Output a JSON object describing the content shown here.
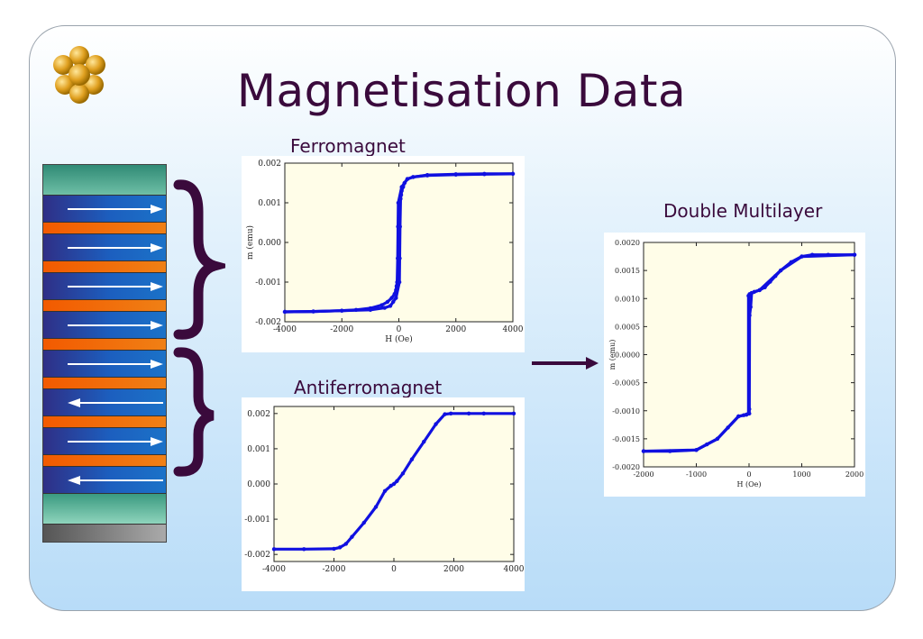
{
  "title": "Magnetisation Data",
  "captions": {
    "ferro": "Ferromagnet",
    "antiferro": "Antiferromagnet",
    "double": "Double Multilayer"
  },
  "colors": {
    "title": "#3a0a3c",
    "plot_bg": "#fffde8",
    "data": "#1010e0",
    "brace": "#3a0a3c"
  },
  "stack": {
    "layers": [
      "cap",
      "magnetic",
      "spacer",
      "magnetic",
      "spacer",
      "magnetic",
      "spacer",
      "magnetic",
      "spacer",
      "magnetic",
      "spacer",
      "magnetic",
      "spacer",
      "magnetic",
      "spacer",
      "magnetic",
      "cap",
      "substrate"
    ],
    "arrows": [
      "right",
      "right",
      "right",
      "right",
      "right",
      "left",
      "right",
      "left"
    ]
  },
  "chart_data": [
    {
      "type": "line",
      "name": "ferromagnet",
      "title": "",
      "xlabel": "H (Oe)",
      "ylabel": "m (emu)",
      "xlim": [
        -4000,
        4000
      ],
      "ylim": [
        -0.002,
        0.002
      ],
      "xticks": [
        -4000,
        -2000,
        0,
        2000,
        4000
      ],
      "yticks": [
        -0.002,
        -0.001,
        0.0,
        0.001,
        0.002
      ],
      "xtick_labels": [
        "-4000",
        "-2000",
        "0",
        "2000",
        "4000"
      ],
      "ytick_labels": [
        "-0.002",
        "-0.001",
        "0.000",
        "0.001",
        "0.002"
      ],
      "series": [
        {
          "x": [
            -4000,
            -3000,
            -2000,
            -1500,
            -1000,
            -600,
            -400,
            -250,
            -150,
            -100,
            -80,
            -60,
            -40,
            -30,
            -20,
            100,
            200,
            300,
            500,
            1000,
            2000,
            3000,
            4000
          ],
          "y": [
            -0.00175,
            -0.00174,
            -0.00172,
            -0.0017,
            -0.00166,
            -0.00158,
            -0.0015,
            -0.0014,
            -0.0013,
            -0.0012,
            -0.0011,
            -0.001,
            -0.0004,
            0.0004,
            0.001,
            0.0014,
            0.0015,
            0.0016,
            0.00165,
            0.0017,
            0.00172,
            0.00173,
            0.00173
          ]
        },
        {
          "x": [
            4000,
            3000,
            2000,
            1000,
            500,
            300,
            200,
            150,
            100,
            80,
            60,
            40,
            30,
            20,
            -100,
            -200,
            -300,
            -500,
            -1000,
            -2000,
            -3000,
            -4000
          ],
          "y": [
            0.00173,
            0.00172,
            0.00171,
            0.00169,
            0.00165,
            0.0016,
            0.0015,
            0.0014,
            0.0013,
            0.0012,
            0.0011,
            0.0004,
            -0.0004,
            -0.001,
            -0.0014,
            -0.0015,
            -0.0016,
            -0.00165,
            -0.0017,
            -0.00172,
            -0.00174,
            -0.00175
          ]
        }
      ]
    },
    {
      "type": "line",
      "name": "antiferromagnet",
      "title": "",
      "xlabel": "",
      "ylabel": "",
      "xlim": [
        -4000,
        4000
      ],
      "ylim": [
        -0.0022,
        0.0022
      ],
      "xticks": [
        -4000,
        -2000,
        0,
        2000,
        4000
      ],
      "yticks": [
        -0.002,
        -0.001,
        0.0,
        0.001,
        0.002
      ],
      "xtick_labels": [
        "-4000",
        "-2000",
        "0",
        "2000",
        "4000"
      ],
      "ytick_labels": [
        "-0.002",
        "-0.001",
        "0.000",
        "0.001",
        "0.002"
      ],
      "series": [
        {
          "x": [
            -4000,
            -3000,
            -2000,
            -1800,
            -1600,
            -1400,
            -1000,
            -600,
            -300,
            -100,
            0,
            100,
            300,
            600,
            1000,
            1400,
            1700,
            1900,
            2500,
            3000,
            4000
          ],
          "y": [
            -0.00185,
            -0.00185,
            -0.00184,
            -0.0018,
            -0.0017,
            -0.0015,
            -0.0011,
            -0.00065,
            -0.0002,
            -5e-05,
            0.0,
            8e-05,
            0.0003,
            0.0007,
            0.0012,
            0.0017,
            0.00198,
            0.002,
            0.002,
            0.002,
            0.002
          ]
        }
      ]
    },
    {
      "type": "line",
      "name": "double-multilayer",
      "title": "",
      "xlabel": "H (Oe)",
      "ylabel": "m (emu)",
      "xlim": [
        -2000,
        2000
      ],
      "ylim": [
        -0.002,
        0.002
      ],
      "xticks": [
        -2000,
        -1000,
        0,
        1000,
        2000
      ],
      "yticks": [
        -0.002,
        -0.0015,
        -0.001,
        -0.0005,
        0.0,
        0.0005,
        0.001,
        0.0015,
        0.002
      ],
      "xtick_labels": [
        "-2000",
        "-1000",
        "0",
        "1000",
        "2000"
      ],
      "ytick_labels": [
        "-0.0020",
        "-0.0015",
        "-0.0010",
        "-0.0005",
        "0.0000",
        "0.0005",
        "0.0010",
        "0.0015",
        "0.0020"
      ],
      "series": [
        {
          "x": [
            -2000,
            -1500,
            -1000,
            -800,
            -600,
            -400,
            -200,
            -100,
            -50,
            -10,
            -10,
            10,
            50,
            100,
            200,
            300,
            400,
            500,
            600,
            800,
            1000,
            1200,
            1500,
            2000
          ],
          "y": [
            -0.00172,
            -0.00172,
            -0.0017,
            -0.0016,
            -0.0015,
            -0.0013,
            -0.0011,
            -0.00108,
            -0.00107,
            -0.00105,
            0.00105,
            0.00108,
            0.0011,
            0.00112,
            0.00115,
            0.0012,
            0.0013,
            0.0014,
            0.0015,
            0.00165,
            0.00175,
            0.00178,
            0.00178,
            0.00178
          ]
        },
        {
          "x": [
            2000,
            1000,
            600,
            200,
            50,
            30,
            10,
            5,
            5,
            -50,
            -200,
            -600,
            -1000,
            -2000
          ],
          "y": [
            0.00178,
            0.00175,
            0.0015,
            0.00115,
            0.0011,
            0.00085,
            0.0007,
            -0.00097,
            -0.00105,
            -0.00107,
            -0.0011,
            -0.0015,
            -0.0017,
            -0.00172
          ]
        }
      ]
    }
  ]
}
